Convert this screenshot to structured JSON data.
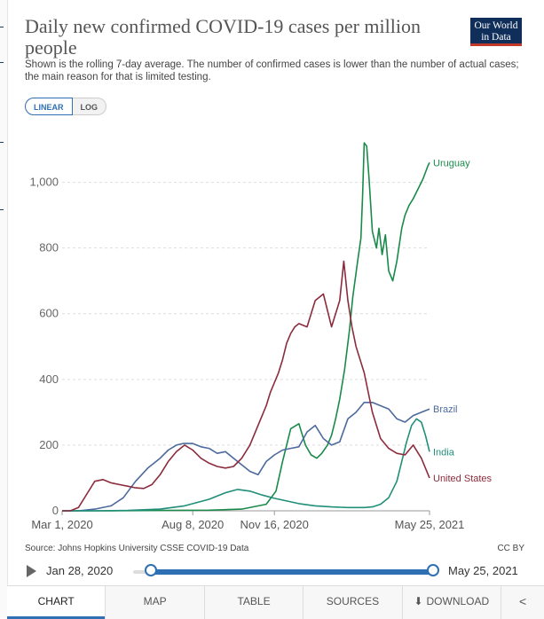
{
  "header": {
    "title": "Daily new confirmed COVID-19 cases per million people",
    "subtitle": "Shown is the rolling 7-day average. The number of confirmed cases is lower than the number of actual cases; the main reason for that is limited testing.",
    "logo_line1": "Our World",
    "logo_line2": "in Data"
  },
  "scale_toggle": {
    "linear": "LINEAR",
    "log": "LOG",
    "selected": "LINEAR"
  },
  "footer": {
    "source": "Source: Johns Hopkins University CSSE COVID-19 Data",
    "license": "CC BY"
  },
  "timeline": {
    "start_label": "Jan 28, 2020",
    "end_label": "May 25, 2021"
  },
  "tabs": [
    {
      "label": "CHART"
    },
    {
      "label": "MAP"
    },
    {
      "label": "TABLE"
    },
    {
      "label": "SOURCES"
    },
    {
      "label": "DOWNLOAD"
    }
  ],
  "icons": {
    "play": "play-icon",
    "download": "download-icon",
    "share": "share-icon"
  },
  "chart_data": {
    "type": "line",
    "title": "Daily new confirmed COVID-19 cases per million people",
    "xlabel": "",
    "ylabel": "",
    "x_unit": "days since Mar 1, 2020",
    "xlim": [
      0,
      450
    ],
    "ylim": [
      0,
      1150
    ],
    "yticks": [
      0,
      200,
      400,
      600,
      800,
      1000
    ],
    "ytick_labels": [
      "0",
      "200",
      "400",
      "600",
      "800",
      "1,000"
    ],
    "xticks": [
      0,
      160,
      260,
      450
    ],
    "xtick_labels": [
      "Mar 1, 2020",
      "Aug 8, 2020",
      "Nov 16, 2020",
      "May 25, 2021"
    ],
    "grid": "horizontal dashed",
    "series": [
      {
        "name": "Uruguay",
        "color": "#1a8a4a",
        "x": [
          0,
          60,
          120,
          180,
          220,
          250,
          262,
          270,
          275,
          280,
          290,
          298,
          305,
          312,
          318,
          325,
          330,
          335,
          340,
          346,
          352,
          356,
          362,
          366,
          368,
          370,
          373,
          376,
          380,
          385,
          388,
          392,
          396,
          400,
          405,
          410,
          416,
          420,
          425,
          430,
          436,
          442,
          448,
          450
        ],
        "y": [
          0,
          0,
          1,
          2,
          5,
          20,
          60,
          150,
          200,
          250,
          265,
          200,
          170,
          160,
          175,
          200,
          230,
          280,
          340,
          430,
          550,
          650,
          760,
          830,
          960,
          1120,
          1110,
          1010,
          850,
          800,
          860,
          780,
          840,
          730,
          700,
          760,
          860,
          900,
          930,
          950,
          980,
          1010,
          1050,
          1060
        ]
      },
      {
        "name": "Brazil",
        "color": "#4c6a9c",
        "x": [
          0,
          20,
          40,
          60,
          75,
          90,
          105,
          120,
          130,
          140,
          148,
          160,
          170,
          180,
          190,
          200,
          210,
          220,
          230,
          240,
          250,
          260,
          270,
          280,
          290,
          300,
          310,
          320,
          330,
          340,
          350,
          360,
          370,
          380,
          390,
          400,
          410,
          420,
          430,
          440,
          450
        ],
        "y": [
          0,
          0,
          5,
          15,
          40,
          90,
          130,
          160,
          185,
          200,
          205,
          205,
          195,
          190,
          175,
          180,
          160,
          140,
          120,
          110,
          150,
          170,
          185,
          190,
          195,
          240,
          260,
          220,
          200,
          210,
          280,
          300,
          330,
          330,
          320,
          310,
          280,
          270,
          290,
          300,
          310
        ]
      },
      {
        "name": "India",
        "color": "#1f8f7a",
        "x": [
          0,
          40,
          80,
          120,
          150,
          180,
          200,
          215,
          230,
          245,
          260,
          275,
          290,
          310,
          330,
          350,
          370,
          380,
          390,
          400,
          410,
          416,
          422,
          428,
          434,
          440,
          445,
          450
        ],
        "y": [
          0,
          0,
          1,
          5,
          15,
          35,
          55,
          65,
          60,
          48,
          38,
          30,
          22,
          15,
          12,
          10,
          10,
          12,
          20,
          40,
          90,
          150,
          210,
          260,
          280,
          270,
          230,
          180
        ]
      },
      {
        "name": "United States",
        "color": "#8b2c3c",
        "x": [
          0,
          10,
          20,
          30,
          40,
          50,
          60,
          70,
          80,
          90,
          100,
          110,
          120,
          130,
          140,
          150,
          160,
          170,
          180,
          190,
          200,
          210,
          220,
          230,
          240,
          245,
          250,
          255,
          260,
          265,
          270,
          275,
          280,
          285,
          290,
          300,
          310,
          320,
          330,
          340,
          345,
          350,
          355,
          360,
          370,
          380,
          390,
          400,
          410,
          420,
          430,
          440,
          450
        ],
        "y": [
          0,
          0,
          10,
          50,
          90,
          95,
          85,
          80,
          75,
          70,
          68,
          80,
          110,
          150,
          180,
          200,
          185,
          160,
          145,
          135,
          130,
          135,
          160,
          200,
          260,
          290,
          320,
          360,
          390,
          420,
          460,
          510,
          540,
          560,
          570,
          560,
          640,
          660,
          560,
          640,
          760,
          640,
          560,
          500,
          420,
          300,
          220,
          190,
          175,
          170,
          200,
          160,
          100
        ]
      }
    ],
    "line_labels": [
      {
        "name": "Uruguay",
        "text": "Uruguay"
      },
      {
        "name": "Brazil",
        "text": "Brazil"
      },
      {
        "name": "India",
        "text": "India"
      },
      {
        "name": "United States",
        "text": "United States"
      }
    ]
  }
}
